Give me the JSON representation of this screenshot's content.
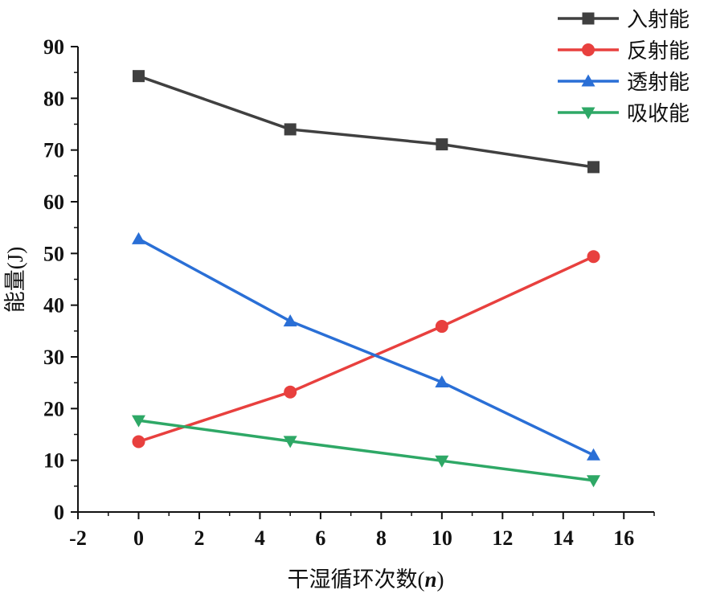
{
  "chart_data": {
    "type": "line",
    "xlabel": "干湿循环次数(n)",
    "ylabel": "能量(J)",
    "xlim": [
      -2,
      17
    ],
    "ylim": [
      0,
      90
    ],
    "xticks": [
      -2,
      0,
      2,
      4,
      6,
      8,
      10,
      12,
      14,
      16
    ],
    "yticks": [
      0,
      10,
      20,
      30,
      40,
      50,
      60,
      70,
      80,
      90
    ],
    "x": [
      0,
      5,
      10,
      15
    ],
    "legend_position": "top-right",
    "grid": false,
    "series": [
      {
        "name": "入射能",
        "color": "#404040",
        "marker": "square",
        "values": [
          84.3,
          74.0,
          71.1,
          66.7
        ]
      },
      {
        "name": "反射能",
        "color": "#e8403e",
        "marker": "circle",
        "values": [
          13.6,
          23.2,
          35.9,
          49.4
        ]
      },
      {
        "name": "透射能",
        "color": "#2a6fd6",
        "marker": "triangle-up",
        "values": [
          52.8,
          36.9,
          25.1,
          11.0
        ]
      },
      {
        "name": "吸收能",
        "color": "#2ea866",
        "marker": "triangle-down",
        "values": [
          17.7,
          13.7,
          9.9,
          6.1
        ]
      }
    ]
  }
}
